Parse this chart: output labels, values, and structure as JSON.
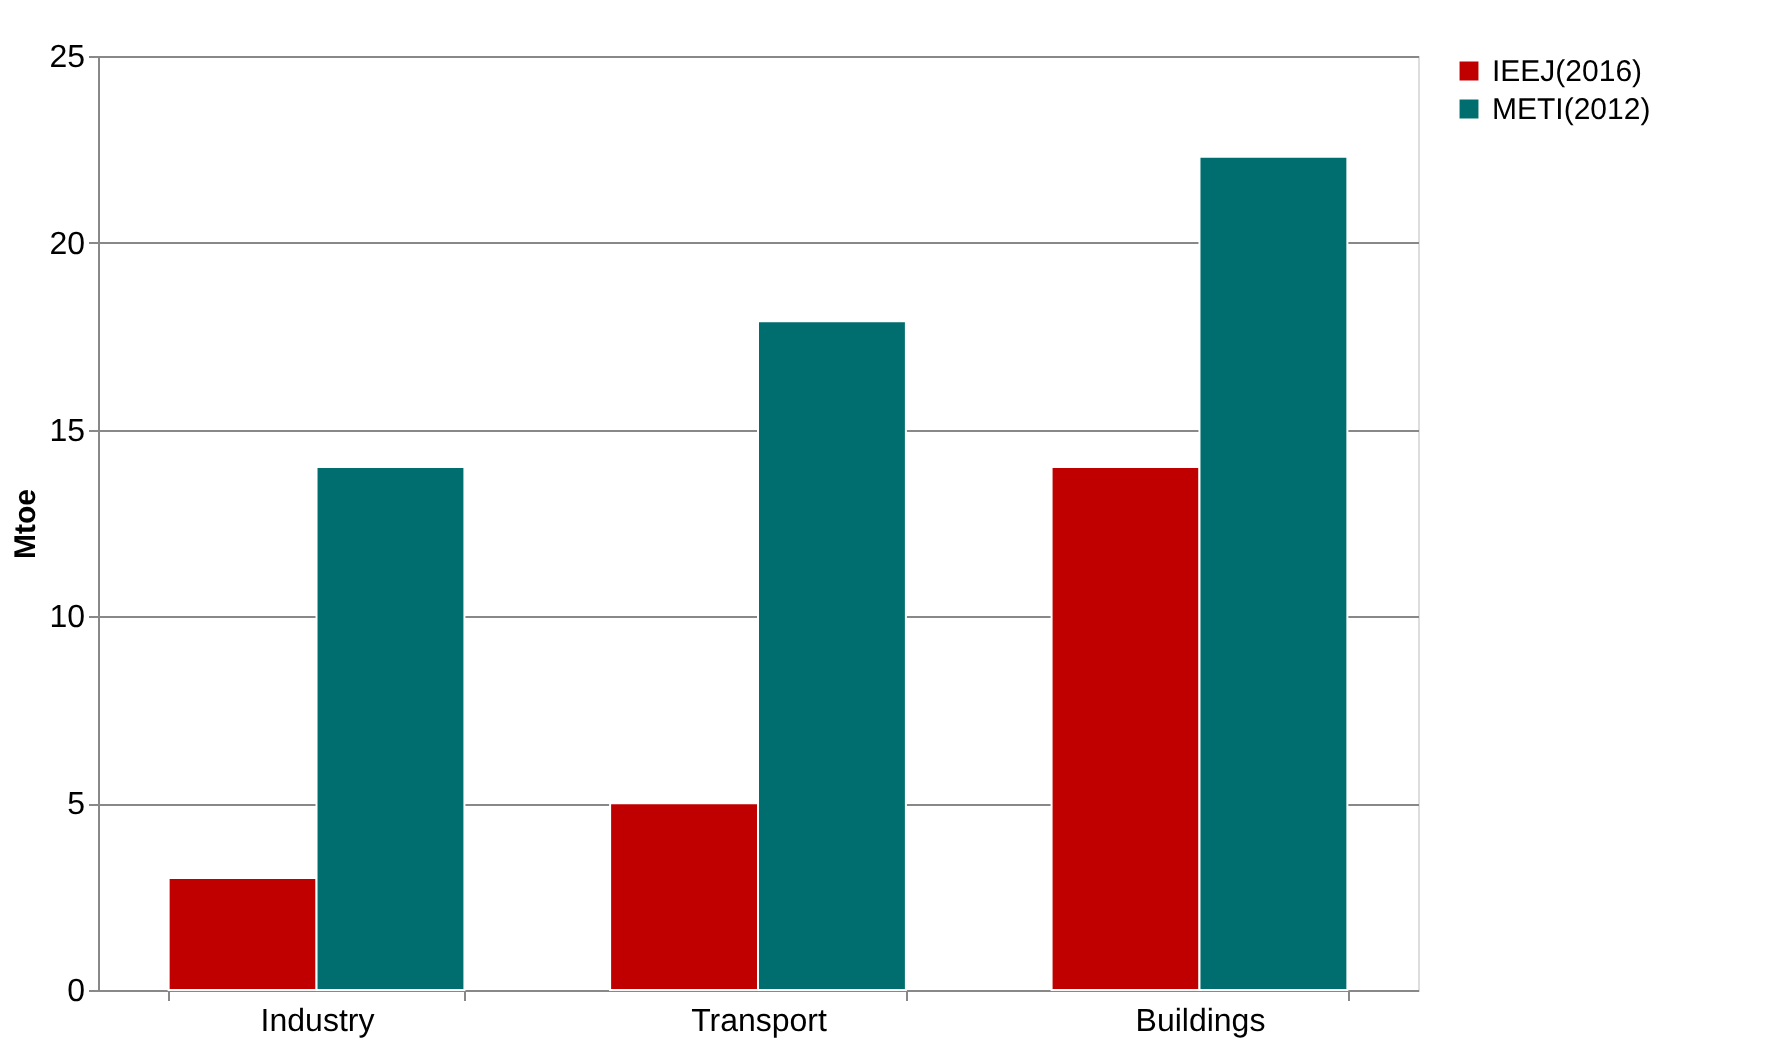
{
  "chart_data": {
    "type": "bar",
    "ylabel": "Mtoe",
    "categories": [
      "Industry",
      "Transport",
      "Buildings"
    ],
    "series": [
      {
        "name": "IEEJ(2016)",
        "color": "#c00000",
        "values": [
          3,
          5,
          14
        ]
      },
      {
        "name": "METI(2012)",
        "color": "#006e6e",
        "values": [
          14,
          17.9,
          22.3
        ]
      }
    ],
    "ylim": [
      0,
      25
    ],
    "yticks": [
      0,
      5,
      10,
      15,
      20,
      25
    ],
    "grid": "y",
    "legend": "right"
  }
}
